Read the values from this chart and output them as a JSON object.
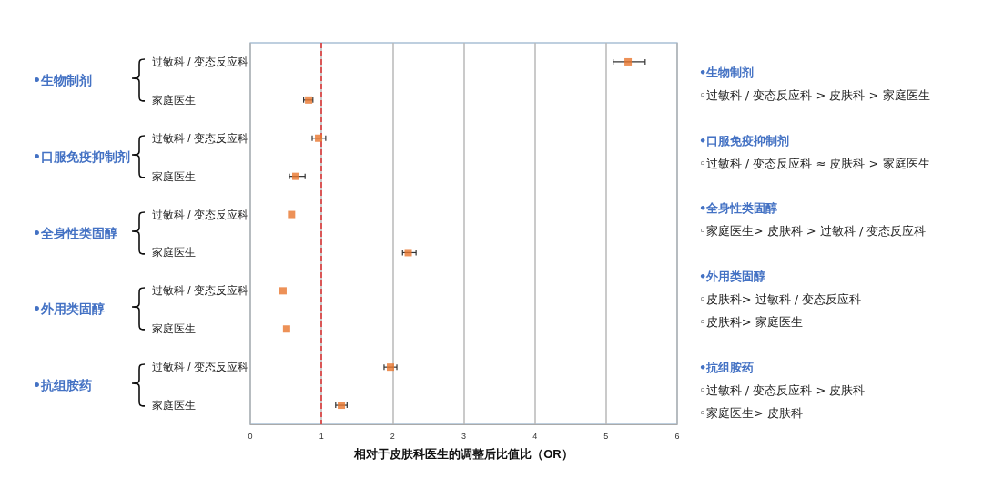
{
  "chart_data": {
    "type": "scatter",
    "xlabel": "相对于皮肤科医生的调整后比值比（OR）",
    "categories": [
      "过敏科 / 变态反应科",
      "家庭医生",
      "过敏科 / 变态反应科",
      "家庭医生",
      "过敏科 / 变态反应科",
      "家庭医生",
      "过敏科 / 变态反应科",
      "家庭医生",
      "过敏科 / 变态反应科",
      "家庭医生"
    ],
    "values": [
      5.31,
      0.82,
      0.96,
      0.64,
      0.58,
      2.22,
      0.46,
      0.51,
      1.97,
      1.28
    ],
    "errors": [
      [
        5.1,
        5.55
      ],
      [
        0.75,
        0.88
      ],
      [
        0.87,
        1.06
      ],
      [
        0.55,
        0.77
      ],
      null,
      [
        2.14,
        2.33
      ],
      null,
      null,
      [
        1.88,
        2.06
      ],
      [
        1.2,
        1.36
      ]
    ],
    "color": "#e8762d",
    "marker": "square",
    "orientation": "horizontal",
    "xlim": [
      0,
      6
    ],
    "xticks": [
      0,
      1,
      2,
      3,
      4,
      5,
      6
    ],
    "grid": "x",
    "ref_lines": [
      {
        "axis": "x",
        "value": 1,
        "color": "#e03030",
        "line_style": "dashed"
      }
    ],
    "annotations": [
      "•生物制剂",
      "•口服免疫抑制剂",
      "•全身性类固醇",
      "•外用类固醇",
      "•抗组胺药",
      "•生物制剂",
      "◦过敏科 / 变态反应科 > 皮肤科 > 家庭医生",
      "•口服免疫抑制剂",
      "◦过敏科 / 变态反应科 ≈ 皮肤科 > 家庭医生",
      "•全身性类固醇",
      "◦家庭医生> 皮肤科 > 过敏科 / 变态反应科",
      "•外用类固醇",
      "◦皮肤科> 过敏科 / 变态反应科",
      "◦皮肤科> 家庭医生",
      "•抗组胺药",
      "◦过敏科 / 变态反应科 > 皮肤科",
      "◦家庭医生> 皮肤科"
    ]
  }
}
